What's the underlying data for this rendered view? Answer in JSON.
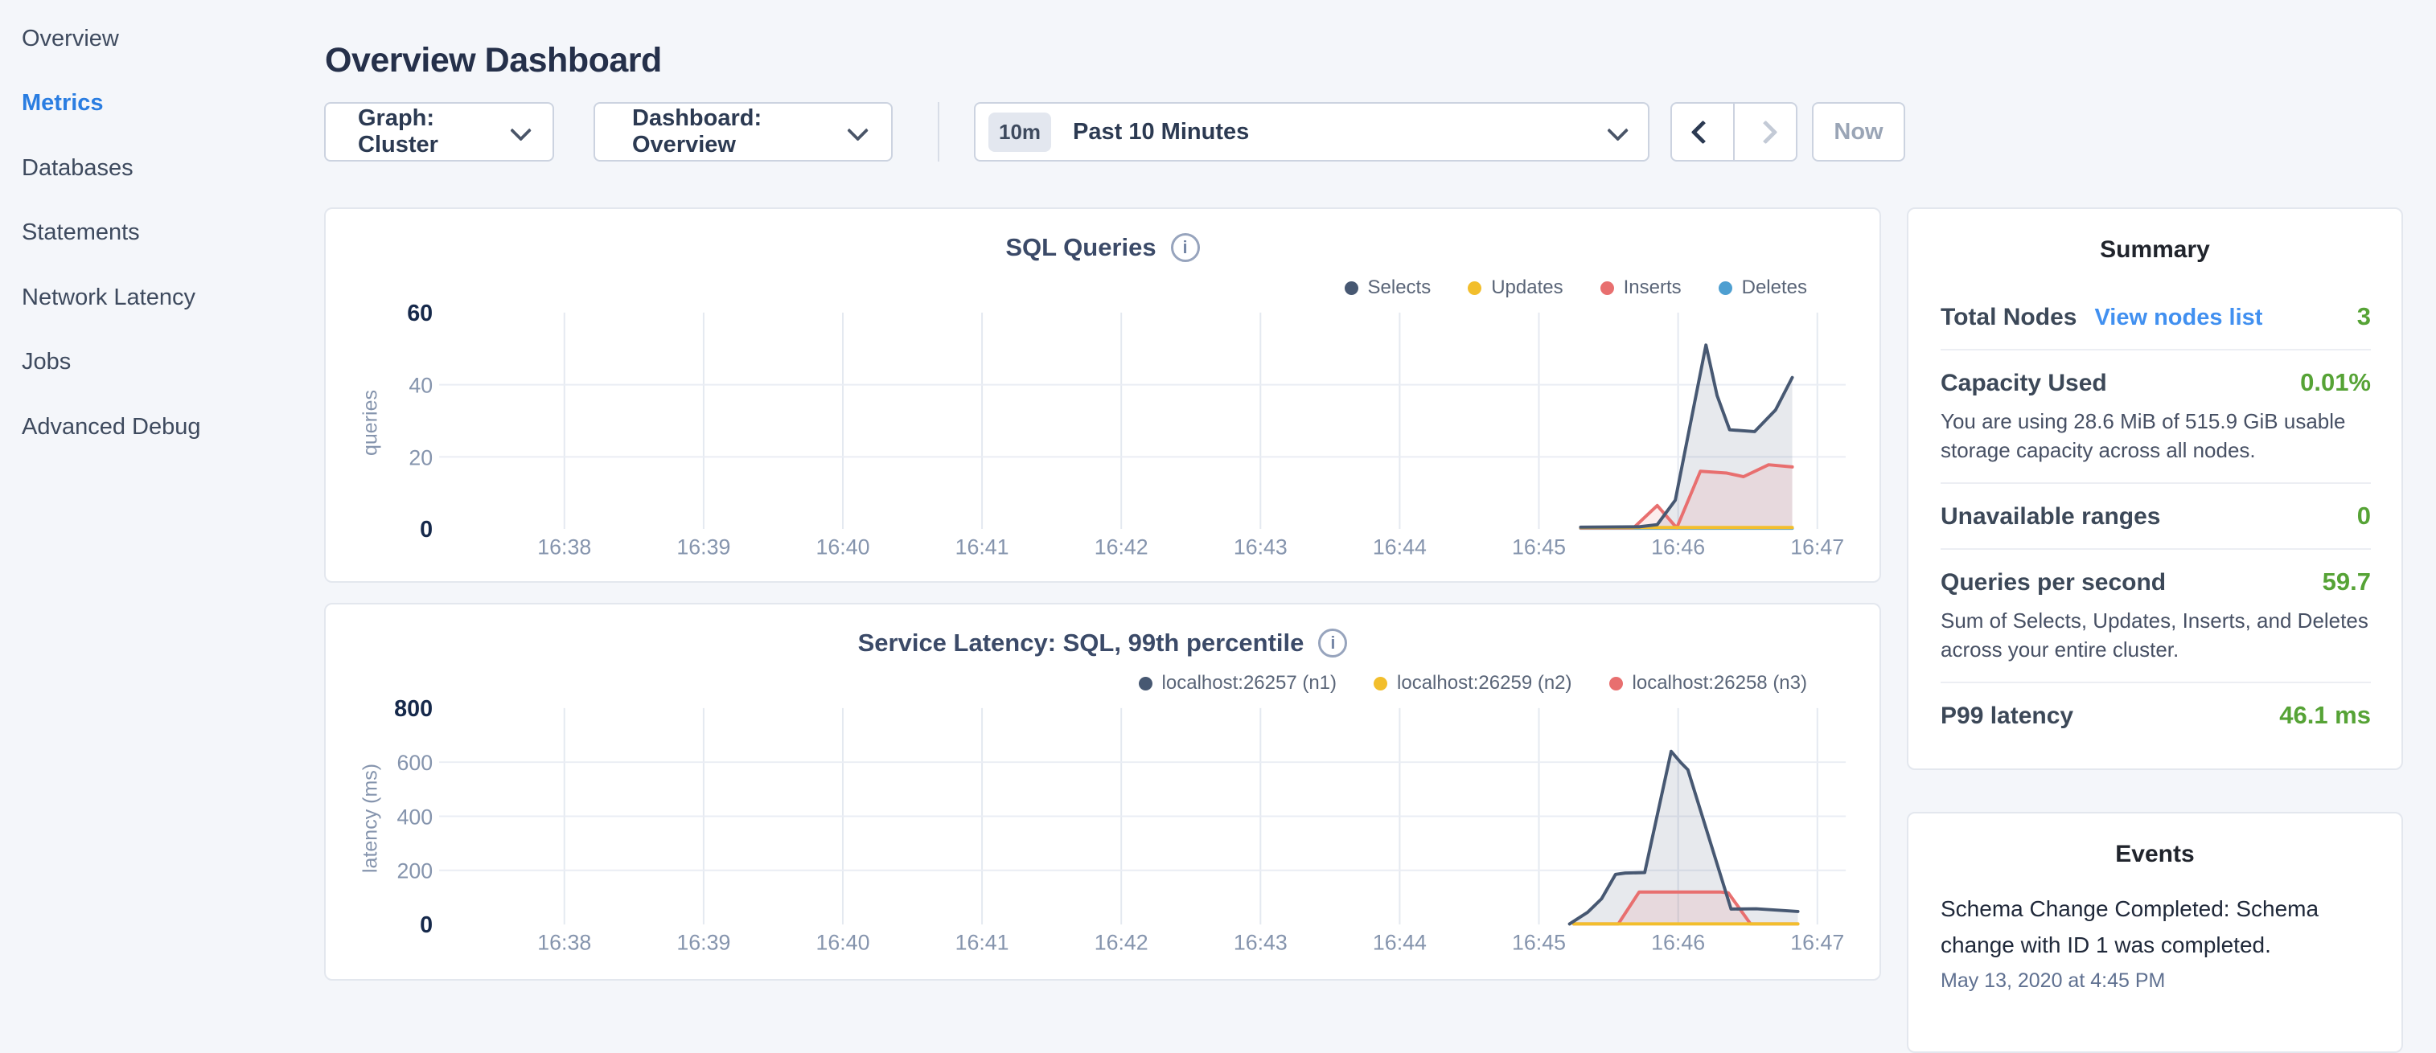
{
  "sidebar": {
    "items": [
      {
        "label": "Overview",
        "active": false
      },
      {
        "label": "Metrics",
        "active": true
      },
      {
        "label": "Databases",
        "active": false
      },
      {
        "label": "Statements",
        "active": false
      },
      {
        "label": "Network Latency",
        "active": false
      },
      {
        "label": "Jobs",
        "active": false
      },
      {
        "label": "Advanced Debug",
        "active": false
      }
    ]
  },
  "header": {
    "title": "Overview Dashboard"
  },
  "controls": {
    "graph_dropdown": "Graph: Cluster",
    "dashboard_dropdown": "Dashboard: Overview",
    "time_window_badge": "10m",
    "time_window_label": "Past 10 Minutes",
    "now_button": "Now"
  },
  "summary": {
    "title": "Summary",
    "rows": [
      {
        "title": "Total Nodes",
        "link": "View nodes list",
        "value": "3"
      },
      {
        "title": "Capacity Used",
        "value": "0.01%",
        "desc": "You are using 28.6 MiB of 515.9 GiB usable storage capacity across all nodes."
      },
      {
        "title": "Unavailable ranges",
        "value": "0"
      },
      {
        "title": "Queries per second",
        "value": "59.7",
        "desc": "Sum of Selects, Updates, Inserts, and Deletes across your entire cluster."
      },
      {
        "title": "P99 latency",
        "value": "46.1 ms"
      }
    ]
  },
  "events": {
    "title": "Events",
    "items": [
      {
        "text": "Schema Change Completed: Schema change with ID 1 was completed.",
        "timestamp": "May 13, 2020 at 4:45 PM"
      }
    ]
  },
  "colors": {
    "active_nav": "#2a7de1",
    "link_blue": "#4190f0",
    "value_green": "#56a336",
    "series_navy": "#475872",
    "series_yellow": "#f2be2c",
    "series_red": "#e86f6f",
    "series_blue": "#4e9fd1"
  },
  "chart_data": [
    {
      "type": "area",
      "title": "SQL Queries",
      "ylabel": "queries",
      "xlabel": "",
      "x_ticks": [
        "16:38",
        "16:39",
        "16:40",
        "16:41",
        "16:42",
        "16:43",
        "16:44",
        "16:45",
        "16:46",
        "16:47"
      ],
      "x_unit": "minutes after 16:38",
      "ylim": [
        0,
        60
      ],
      "y_ticks": [
        0,
        20,
        40,
        60
      ],
      "grid": true,
      "legend_position": "top-right",
      "series": [
        {
          "name": "Selects",
          "color": "#475872",
          "fill": "rgba(71,88,114,0.13)",
          "points": [
            [
              7.3,
              0.5
            ],
            [
              7.72,
              0.6
            ],
            [
              7.85,
              1.2
            ],
            [
              7.98,
              8
            ],
            [
              8.2,
              51
            ],
            [
              8.28,
              37
            ],
            [
              8.37,
              27.5
            ],
            [
              8.55,
              27
            ],
            [
              8.7,
              33
            ],
            [
              8.82,
              42
            ]
          ]
        },
        {
          "name": "Updates",
          "color": "#f2be2c",
          "points": [
            [
              7.3,
              0.4
            ],
            [
              8.82,
              0.4
            ]
          ]
        },
        {
          "name": "Inserts",
          "color": "#e86f6f",
          "fill": "rgba(232,111,111,0.12)",
          "points": [
            [
              7.3,
              0.3
            ],
            [
              7.68,
              0.3
            ],
            [
              7.85,
              6.5
            ],
            [
              7.99,
              0.3
            ],
            [
              8.16,
              16
            ],
            [
              8.35,
              15.5
            ],
            [
              8.47,
              14.5
            ],
            [
              8.65,
              17.8
            ],
            [
              8.82,
              17.2
            ]
          ]
        },
        {
          "name": "Deletes",
          "color": "#4e9fd1",
          "points": [
            [
              7.3,
              0.2
            ],
            [
              8.82,
              0.2
            ]
          ]
        }
      ]
    },
    {
      "type": "area",
      "title": "Service Latency: SQL, 99th percentile",
      "ylabel": "latency (ms)",
      "xlabel": "",
      "x_ticks": [
        "16:38",
        "16:39",
        "16:40",
        "16:41",
        "16:42",
        "16:43",
        "16:44",
        "16:45",
        "16:46",
        "16:47"
      ],
      "x_unit": "minutes after 16:38",
      "ylim": [
        0,
        800
      ],
      "y_ticks": [
        0,
        200,
        400,
        600,
        800
      ],
      "grid": true,
      "legend_position": "top-right",
      "series": [
        {
          "name": "localhost:26257 (n1)",
          "color": "#475872",
          "fill": "rgba(71,88,114,0.13)",
          "points": [
            [
              7.22,
              2
            ],
            [
              7.35,
              45
            ],
            [
              7.45,
              95
            ],
            [
              7.55,
              185
            ],
            [
              7.62,
              190
            ],
            [
              7.76,
              192
            ],
            [
              7.95,
              640
            ],
            [
              8.02,
              598
            ],
            [
              8.07,
              572
            ],
            [
              8.38,
              57
            ],
            [
              8.56,
              58
            ],
            [
              8.86,
              48
            ]
          ]
        },
        {
          "name": "localhost:26259 (n2)",
          "color": "#f2be2c",
          "points": [
            [
              7.25,
              2
            ],
            [
              8.86,
              2
            ]
          ]
        },
        {
          "name": "localhost:26258 (n3)",
          "color": "#e86f6f",
          "fill": "rgba(232,111,111,0.12)",
          "points": [
            [
              7.25,
              2
            ],
            [
              7.57,
              2
            ],
            [
              7.72,
              120
            ],
            [
              8.3,
              120
            ],
            [
              8.36,
              117
            ],
            [
              8.52,
              2
            ],
            [
              8.86,
              2
            ]
          ]
        }
      ]
    }
  ]
}
